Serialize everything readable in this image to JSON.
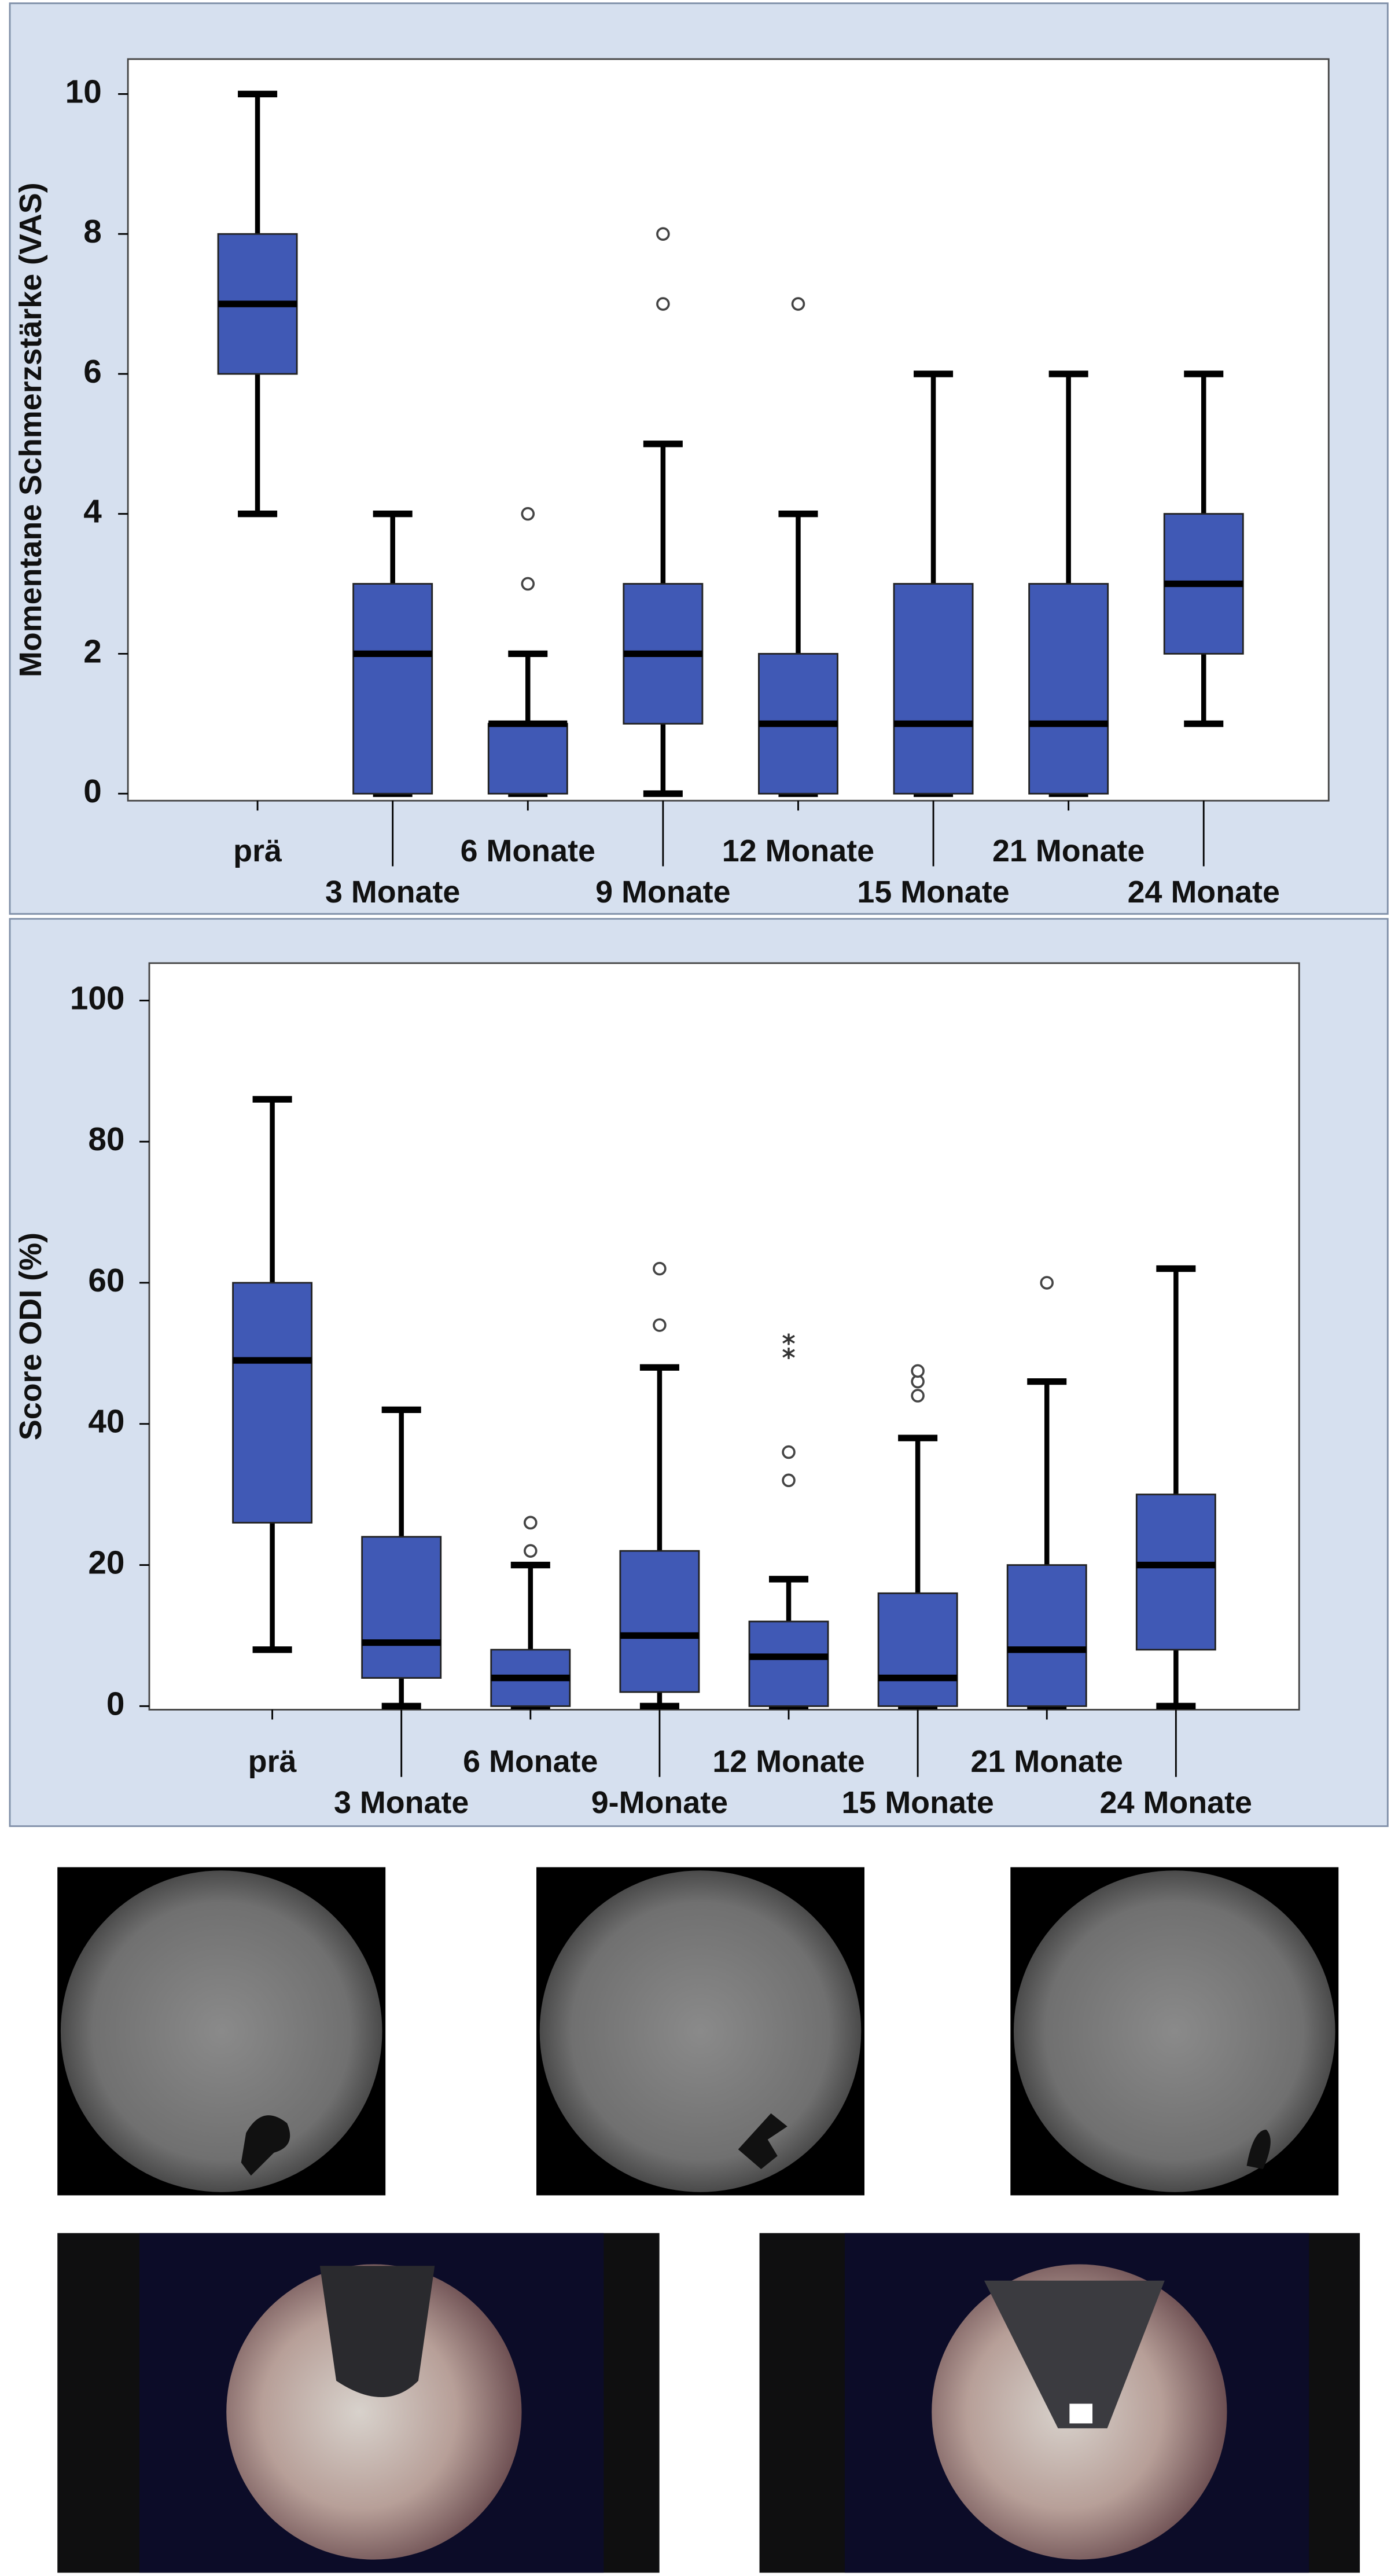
{
  "chart_data": [
    {
      "type": "box",
      "y_label": "Momentane Schmerzstärke (VAS)",
      "categories": [
        "prä",
        "3 Monate",
        "6 Monate",
        "9 Monate",
        "12 Monate",
        "15 Monate",
        "21 Monate",
        "24 Monate"
      ],
      "color": "#4059b5",
      "ylim": [
        -0.1,
        10.5
      ],
      "yticks": [
        0,
        2,
        4,
        6,
        8,
        10
      ],
      "boxes": [
        {
          "whislo": 4,
          "q1": 6,
          "med": 7,
          "q3": 8,
          "whishi": 10,
          "fliers": []
        },
        {
          "whislo": 0,
          "q1": 0,
          "med": 2,
          "q3": 3,
          "whishi": 4,
          "fliers": []
        },
        {
          "whislo": 0,
          "q1": 0,
          "med": 1,
          "q3": 1,
          "whishi": 2,
          "fliers": [
            3,
            4
          ]
        },
        {
          "whislo": 0,
          "q1": 1,
          "med": 2,
          "q3": 3,
          "whishi": 5,
          "fliers": [
            7,
            8
          ]
        },
        {
          "whislo": 0,
          "q1": 0,
          "med": 1,
          "q3": 2,
          "whishi": 4,
          "fliers": [
            7
          ]
        },
        {
          "whislo": 0,
          "q1": 0,
          "med": 1,
          "q3": 3,
          "whishi": 6,
          "fliers": []
        },
        {
          "whislo": 0,
          "q1": 0,
          "med": 1,
          "q3": 3,
          "whishi": 6,
          "fliers": []
        },
        {
          "whislo": 1,
          "q1": 2,
          "med": 3,
          "q3": 4,
          "whishi": 6,
          "fliers": []
        }
      ]
    },
    {
      "type": "box",
      "y_label": "Score ODI (%)",
      "categories": [
        "prä",
        "3 Monate",
        "6 Monate",
        "9-Monate",
        "12 Monate",
        "15 Monate",
        "21 Monate",
        "24 Monate"
      ],
      "color": "#4059b5",
      "ylim": [
        -0.5,
        105.3
      ],
      "yticks": [
        0,
        20,
        40,
        60,
        80,
        100
      ],
      "boxes": [
        {
          "whislo": 8,
          "q1": 26,
          "med": 49,
          "q3": 60,
          "whishi": 86,
          "fliers": [],
          "extremes": []
        },
        {
          "whislo": 0,
          "q1": 4,
          "med": 9,
          "q3": 24,
          "whishi": 42,
          "fliers": [],
          "extremes": []
        },
        {
          "whislo": 0,
          "q1": 0,
          "med": 4,
          "q3": 8,
          "whishi": 20,
          "fliers": [
            22,
            26,
            26
          ],
          "extremes": []
        },
        {
          "whislo": 0,
          "q1": 2,
          "med": 10,
          "q3": 22,
          "whishi": 48,
          "fliers": [
            54,
            62
          ],
          "extremes": []
        },
        {
          "whislo": 0,
          "q1": 0,
          "med": 7,
          "q3": 12,
          "whishi": 18,
          "fliers": [
            32,
            36
          ],
          "extremes": [
            50,
            52
          ]
        },
        {
          "whislo": 0,
          "q1": 0,
          "med": 4,
          "q3": 16,
          "whishi": 38,
          "fliers": [
            44,
            46,
            47.5
          ],
          "extremes": []
        },
        {
          "whislo": 0,
          "q1": 0,
          "med": 8,
          "q3": 20,
          "whishi": 46,
          "fliers": [
            60
          ],
          "extremes": []
        },
        {
          "whislo": 0,
          "q1": 8,
          "med": 20,
          "q3": 30,
          "whishi": 62,
          "fliers": [],
          "extremes": []
        }
      ]
    }
  ]
}
